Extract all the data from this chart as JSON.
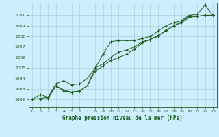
{
  "title": "Graphe pression niveau de la mer (hPa)",
  "bg_color": "#cceeff",
  "grid_color": "#b0d0d8",
  "line_color": "#1a5c1a",
  "xlim": [
    -0.5,
    23.5
  ],
  "ylim": [
    1001.3,
    1011.2
  ],
  "xticks": [
    0,
    1,
    2,
    3,
    4,
    5,
    6,
    7,
    8,
    9,
    10,
    11,
    12,
    13,
    14,
    15,
    16,
    17,
    18,
    19,
    20,
    21,
    22,
    23
  ],
  "yticks": [
    1002,
    1003,
    1004,
    1005,
    1006,
    1007,
    1008,
    1009,
    1010
  ],
  "line1_x": [
    0,
    1,
    2,
    3,
    4,
    5,
    6,
    7,
    8,
    9,
    10,
    11,
    12,
    13,
    14,
    15,
    16,
    17,
    18,
    19,
    20,
    21,
    22,
    23
  ],
  "line1_y": [
    1002.0,
    1002.5,
    1002.2,
    1003.3,
    1002.8,
    1002.7,
    1002.8,
    1003.3,
    1005.0,
    1006.3,
    1007.5,
    1007.6,
    1007.6,
    1007.6,
    1007.8,
    1008.0,
    1008.5,
    1009.0,
    1009.3,
    1009.5,
    1010.0,
    1010.1,
    1011.0,
    1010.0
  ],
  "line2_x": [
    0,
    2,
    3,
    4,
    5,
    6,
    7,
    8,
    9,
    10,
    11,
    12,
    13,
    14,
    15,
    16,
    17,
    18,
    19,
    20,
    21,
    22,
    23
  ],
  "line2_y": [
    1002.0,
    1002.2,
    1003.5,
    1003.8,
    1003.4,
    1003.5,
    1004.0,
    1005.0,
    1005.4,
    1006.0,
    1006.5,
    1006.7,
    1007.0,
    1007.5,
    1007.7,
    1008.1,
    1008.5,
    1009.0,
    1009.3,
    1009.8,
    1009.9,
    1010.0,
    1010.0
  ],
  "line3_x": [
    1,
    2,
    3,
    4,
    5,
    6,
    7,
    8,
    9,
    10,
    11,
    12,
    13,
    14,
    15,
    16,
    17,
    18,
    19,
    20,
    21,
    22,
    23
  ],
  "line3_y": [
    1002.0,
    1002.1,
    1003.3,
    1002.9,
    1002.7,
    1002.8,
    1003.3,
    1004.7,
    1005.2,
    1005.7,
    1006.0,
    1006.3,
    1006.8,
    1007.4,
    1007.7,
    1008.0,
    1008.6,
    1009.0,
    1009.4,
    1009.9,
    1009.9,
    1010.0,
    1010.0
  ]
}
